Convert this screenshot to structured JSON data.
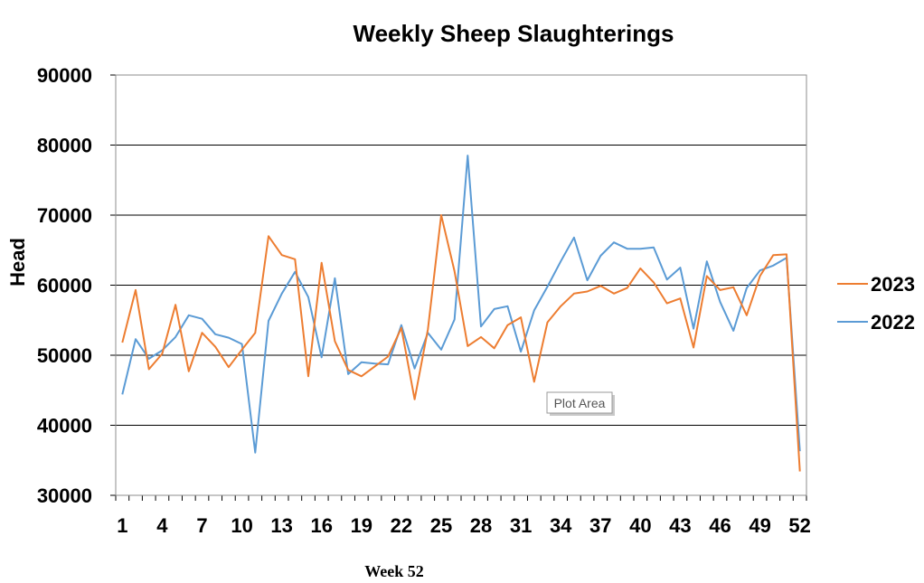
{
  "chart_data": {
    "type": "line",
    "title": "Weekly Sheep Slaughterings",
    "ylabel": "Head",
    "xlabel": "Week 52",
    "ylim": [
      30000,
      90000
    ],
    "yticks": [
      30000,
      40000,
      50000,
      60000,
      70000,
      80000,
      90000
    ],
    "xlim": [
      1,
      52
    ],
    "xticks": [
      1,
      4,
      7,
      10,
      13,
      16,
      19,
      22,
      25,
      28,
      31,
      34,
      37,
      40,
      43,
      46,
      49,
      52
    ],
    "grid": true,
    "legend_position": "right",
    "series": [
      {
        "name": "2023",
        "color": "#ED7D31",
        "values": [
          51800,
          59300,
          48000,
          50200,
          57200,
          47700,
          53200,
          51200,
          48300,
          50800,
          53200,
          67000,
          64300,
          63700,
          47000,
          63200,
          52000,
          47900,
          47000,
          48400,
          49800,
          53900,
          43700,
          53700,
          70000,
          62000,
          51300,
          52600,
          51000,
          54300,
          55400,
          46200,
          54700,
          57000,
          58800,
          59100,
          59900,
          58800,
          59600,
          62400,
          60400,
          57400,
          58100,
          51100,
          61300,
          59300,
          59700,
          55700,
          61300,
          64300,
          64400,
          33400
        ]
      },
      {
        "name": "2022",
        "color": "#5B9BD5",
        "values": [
          44400,
          52300,
          49500,
          50700,
          52600,
          55700,
          55200,
          53000,
          52500,
          51600,
          36100,
          54900,
          58800,
          61900,
          58300,
          49700,
          61000,
          47300,
          49000,
          48800,
          48700,
          54300,
          48100,
          53200,
          50800,
          55100,
          78500,
          54100,
          56600,
          57000,
          50500,
          56400,
          59800,
          63400,
          66800,
          60700,
          64200,
          66100,
          65200,
          65200,
          65400,
          60800,
          62500,
          53800,
          63400,
          57600,
          53500,
          59600,
          62100,
          62800,
          63900,
          36300
        ]
      }
    ]
  },
  "tooltip": {
    "label": "Plot Area"
  }
}
